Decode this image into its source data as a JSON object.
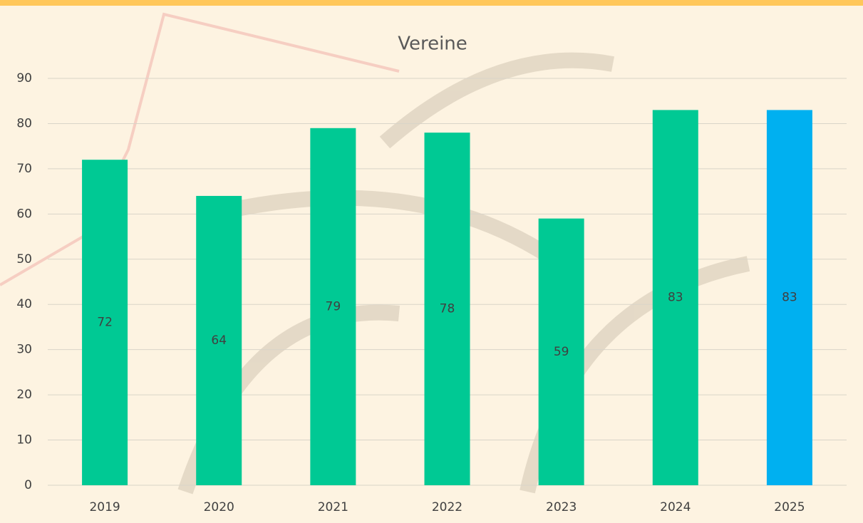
{
  "chart_data": {
    "type": "bar",
    "title": "Vereine",
    "categories": [
      "2019",
      "2020",
      "2021",
      "2022",
      "2023",
      "2024",
      "2025"
    ],
    "values": [
      72,
      64,
      79,
      78,
      59,
      83,
      83
    ],
    "colors": [
      "#00c994",
      "#00c994",
      "#00c994",
      "#00c994",
      "#00c994",
      "#00c994",
      "#00b0f0"
    ],
    "ylim": [
      0,
      90
    ],
    "yticks": [
      0,
      10,
      20,
      30,
      40,
      50,
      60,
      70,
      80,
      90
    ],
    "grid": true
  }
}
